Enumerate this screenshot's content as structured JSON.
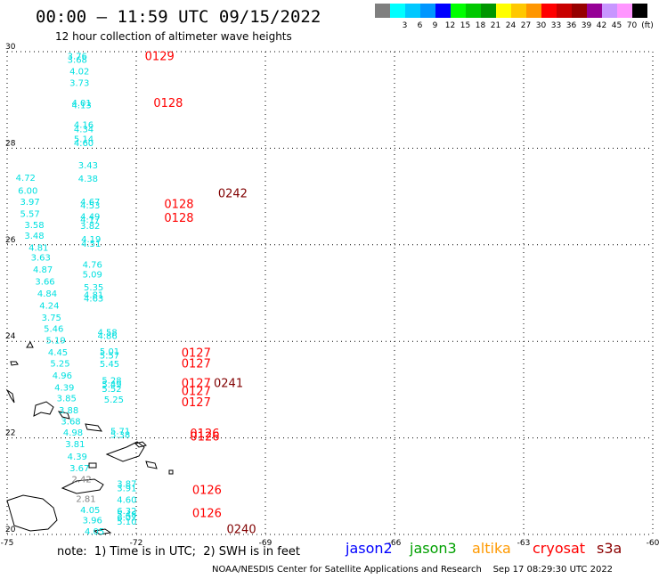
{
  "title": "00:00 – 11:59 UTC 09/15/2022",
  "subtitle": "12 hour collection of altimeter wave heights",
  "scale": {
    "unit": "(ft)",
    "bins": [
      {
        "label": "",
        "color": "#7f7f7f"
      },
      {
        "label": "3",
        "color": "#00ffff"
      },
      {
        "label": "6",
        "color": "#00c8ff"
      },
      {
        "label": "9",
        "color": "#0096ff"
      },
      {
        "label": "12",
        "color": "#0000ff"
      },
      {
        "label": "15",
        "color": "#00ff00"
      },
      {
        "label": "18",
        "color": "#00c800"
      },
      {
        "label": "21",
        "color": "#009600"
      },
      {
        "label": "24",
        "color": "#ffff00"
      },
      {
        "label": "27",
        "color": "#ffc800"
      },
      {
        "label": "30",
        "color": "#ff9600"
      },
      {
        "label": "33",
        "color": "#ff0000"
      },
      {
        "label": "36",
        "color": "#c80000"
      },
      {
        "label": "39",
        "color": "#960000"
      },
      {
        "label": "42",
        "color": "#960096"
      },
      {
        "label": "45",
        "color": "#c896ff"
      },
      {
        "label": "70",
        "color": "#ff96ff"
      },
      {
        "label": "",
        "color": "#000000"
      }
    ]
  },
  "map": {
    "lon_range": [
      -75,
      -60
    ],
    "lat_range": [
      20,
      30
    ],
    "lon_ticks": [
      "-75",
      "-72",
      "-69",
      "-66",
      "-63",
      "-60"
    ],
    "lat_ticks": [
      "30",
      "28",
      "26",
      "24",
      "22",
      "20"
    ],
    "grid": true,
    "tracks": [
      {
        "color": "#00e0e0",
        "points": [
          {
            "lon": -73.6,
            "lat": 29.92,
            "v": "3.76"
          },
          {
            "lon": -73.6,
            "lat": 29.84,
            "v": "3.68"
          },
          {
            "lon": -73.55,
            "lat": 29.6,
            "v": "4.02"
          },
          {
            "lon": -73.55,
            "lat": 29.36,
            "v": "3.73"
          },
          {
            "lon": -73.5,
            "lat": 28.95,
            "v": "4.01"
          },
          {
            "lon": -73.5,
            "lat": 28.9,
            "v": "4.13"
          },
          {
            "lon": -73.45,
            "lat": 28.5,
            "v": "4.16"
          },
          {
            "lon": -73.45,
            "lat": 28.4,
            "v": "4.34"
          },
          {
            "lon": -73.45,
            "lat": 28.2,
            "v": "5.14"
          },
          {
            "lon": -73.45,
            "lat": 28.12,
            "v": "4.60"
          },
          {
            "lon": -73.35,
            "lat": 27.66,
            "v": "3.43"
          },
          {
            "lon": -73.35,
            "lat": 27.38,
            "v": "4.38"
          },
          {
            "lon": -73.3,
            "lat": 26.9,
            "v": "4.67"
          },
          {
            "lon": -73.3,
            "lat": 26.83,
            "v": "4.53"
          },
          {
            "lon": -73.3,
            "lat": 26.6,
            "v": "4.49"
          },
          {
            "lon": -73.3,
            "lat": 26.53,
            "v": "4.17"
          },
          {
            "lon": -73.3,
            "lat": 26.4,
            "v": "3.82"
          },
          {
            "lon": -73.28,
            "lat": 26.13,
            "v": "4.19"
          },
          {
            "lon": -73.28,
            "lat": 26.03,
            "v": "4.51"
          },
          {
            "lon": -73.25,
            "lat": 25.6,
            "v": "4.76"
          },
          {
            "lon": -73.25,
            "lat": 25.4,
            "v": "5.09"
          },
          {
            "lon": -73.22,
            "lat": 25.13,
            "v": "5.35"
          },
          {
            "lon": -73.22,
            "lat": 24.97,
            "v": "4.81"
          },
          {
            "lon": -73.22,
            "lat": 24.9,
            "v": "4.63"
          },
          {
            "lon": -72.9,
            "lat": 24.2,
            "v": "4.58"
          },
          {
            "lon": -72.9,
            "lat": 24.12,
            "v": "4.86"
          },
          {
            "lon": -72.85,
            "lat": 23.8,
            "v": "5.01"
          },
          {
            "lon": -72.85,
            "lat": 23.72,
            "v": "5.57"
          },
          {
            "lon": -72.85,
            "lat": 23.54,
            "v": "5.45"
          },
          {
            "lon": -72.8,
            "lat": 23.2,
            "v": "5.28"
          },
          {
            "lon": -72.8,
            "lat": 23.12,
            "v": "5.49"
          },
          {
            "lon": -72.8,
            "lat": 23.03,
            "v": "5.52"
          },
          {
            "lon": -72.75,
            "lat": 22.8,
            "v": "5.25"
          },
          {
            "lon": -72.6,
            "lat": 22.15,
            "v": "5.71"
          },
          {
            "lon": -72.6,
            "lat": 22.08,
            "v": "5.38"
          },
          {
            "lon": -72.45,
            "lat": 21.06,
            "v": "3.87"
          },
          {
            "lon": -72.45,
            "lat": 20.97,
            "v": "3.91"
          },
          {
            "lon": -72.45,
            "lat": 20.73,
            "v": "4.60"
          },
          {
            "lon": -72.45,
            "lat": 20.5,
            "v": "6.32"
          },
          {
            "lon": -72.45,
            "lat": 20.42,
            "v": "5.48"
          },
          {
            "lon": -72.45,
            "lat": 20.36,
            "v": "6.07"
          },
          {
            "lon": -72.45,
            "lat": 20.28,
            "v": "5.10"
          }
        ]
      },
      {
        "color": "#00e0e0",
        "points": [
          {
            "lon": -74.8,
            "lat": 27.4,
            "v": "4.72"
          },
          {
            "lon": -74.75,
            "lat": 27.13,
            "v": "6.00"
          },
          {
            "lon": -74.7,
            "lat": 26.9,
            "v": "3.97"
          },
          {
            "lon": -74.7,
            "lat": 26.65,
            "v": "5.57"
          },
          {
            "lon": -74.6,
            "lat": 26.42,
            "v": "3.58"
          },
          {
            "lon": -74.6,
            "lat": 26.2,
            "v": "3.48"
          },
          {
            "lon": -74.5,
            "lat": 25.95,
            "v": "4.81"
          },
          {
            "lon": -74.45,
            "lat": 25.75,
            "v": "3.63"
          },
          {
            "lon": -74.4,
            "lat": 25.5,
            "v": "4.87"
          },
          {
            "lon": -74.35,
            "lat": 25.25,
            "v": "3.66"
          },
          {
            "lon": -74.3,
            "lat": 25.0,
            "v": "4.84"
          },
          {
            "lon": -74.25,
            "lat": 24.75,
            "v": "4.24"
          },
          {
            "lon": -74.2,
            "lat": 24.5,
            "v": "3.75"
          },
          {
            "lon": -74.15,
            "lat": 24.27,
            "v": "5.46"
          },
          {
            "lon": -74.1,
            "lat": 24.03,
            "v": "5.19"
          },
          {
            "lon": -74.05,
            "lat": 23.78,
            "v": "4.45"
          },
          {
            "lon": -74.0,
            "lat": 23.55,
            "v": "5.25"
          },
          {
            "lon": -73.95,
            "lat": 23.3,
            "v": "4.96"
          },
          {
            "lon": -73.9,
            "lat": 23.05,
            "v": "4.39"
          },
          {
            "lon": -73.85,
            "lat": 22.83,
            "v": "3.85"
          },
          {
            "lon": -73.8,
            "lat": 22.58,
            "v": "3.88"
          },
          {
            "lon": -73.75,
            "lat": 22.35,
            "v": "3.68"
          },
          {
            "lon": -73.7,
            "lat": 22.12,
            "v": "4.98"
          },
          {
            "lon": -73.65,
            "lat": 21.88,
            "v": "3.81"
          },
          {
            "lon": -73.6,
            "lat": 21.62,
            "v": "4.39"
          },
          {
            "lon": -73.55,
            "lat": 21.38,
            "v": "3.67"
          },
          {
            "lon": -73.5,
            "lat": 21.15,
            "v": "2.42",
            "color": "#808080"
          },
          {
            "lon": -73.4,
            "lat": 20.75,
            "v": "2.81",
            "color": "#808080"
          },
          {
            "lon": -73.3,
            "lat": 20.52,
            "v": "4.05"
          },
          {
            "lon": -73.25,
            "lat": 20.3,
            "v": "3.96"
          },
          {
            "lon": -73.2,
            "lat": 20.07,
            "v": "4.05"
          }
        ]
      }
    ],
    "passes": [
      {
        "lon": -71.8,
        "lat": 29.92,
        "label": "0129",
        "color": "#ff0000"
      },
      {
        "lon": -71.6,
        "lat": 28.95,
        "label": "0128",
        "color": "#ff0000"
      },
      {
        "lon": -71.35,
        "lat": 26.85,
        "label": "0128",
        "color": "#ff0000"
      },
      {
        "lon": -71.35,
        "lat": 26.57,
        "label": "0128",
        "color": "#ff0000"
      },
      {
        "lon": -70.1,
        "lat": 27.08,
        "label": "0242",
        "color": "#800000"
      },
      {
        "lon": -70.95,
        "lat": 23.77,
        "label": "0127",
        "color": "#ff0000"
      },
      {
        "lon": -70.95,
        "lat": 23.55,
        "label": "0127",
        "color": "#ff0000"
      },
      {
        "lon": -70.95,
        "lat": 23.15,
        "label": "0127",
        "color": "#ff0000"
      },
      {
        "lon": -70.95,
        "lat": 22.98,
        "label": "0127",
        "color": "#ff0000"
      },
      {
        "lon": -70.95,
        "lat": 22.75,
        "label": "0127",
        "color": "#ff0000"
      },
      {
        "lon": -70.2,
        "lat": 23.15,
        "label": "0241",
        "color": "#800000"
      },
      {
        "lon": -70.75,
        "lat": 22.1,
        "label": "0126",
        "color": "#ff0000"
      },
      {
        "lon": -70.75,
        "lat": 22.04,
        "label": "0126",
        "color": "#ff0000"
      },
      {
        "lon": -70.7,
        "lat": 20.93,
        "label": "0126",
        "color": "#ff0000"
      },
      {
        "lon": -70.7,
        "lat": 20.45,
        "label": "0126",
        "color": "#ff0000"
      },
      {
        "lon": -69.9,
        "lat": 20.12,
        "label": "0240",
        "color": "#800000"
      }
    ]
  },
  "note": "note:  1) Time is in UTC;  2) SWH is in feet",
  "legend": [
    {
      "name": "jason2",
      "color": "#0000ff"
    },
    {
      "name": "jason3",
      "color": "#00a000"
    },
    {
      "name": "altika",
      "color": "#ff9900"
    },
    {
      "name": "cryosat",
      "color": "#ff0000"
    },
    {
      "name": "s3a",
      "color": "#8b0000"
    }
  ],
  "footer": "NOAA/NESDIS Center for Satellite Applications and Research    Sep 17 08:29:30 UTC 2022"
}
